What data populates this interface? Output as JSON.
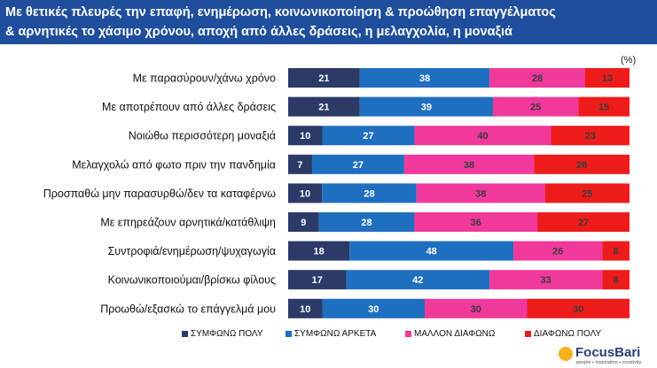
{
  "title_lines": [
    "Με θετικές πλευρές την επαφή, ενημέρωση, κοινωνικοποίηση & προώθηση επαγγέλματος",
    "& αρνητικές το χάσιμο χρόνου, αποχή από άλλες δράσεις, η μελαγχολία, η μοναξιά"
  ],
  "unit": "(%)",
  "colors": {
    "title_bg": "#1f4e9c",
    "series": [
      "#2b3a67",
      "#1f6fc0",
      "#f0399b",
      "#ee1b1b"
    ],
    "label_text": [
      "#ffffff",
      "#ffffff",
      "#3b3b3b",
      "#3b3b3b"
    ]
  },
  "logo": {
    "text": "FocusBari",
    "tagline": "people • inspiration • creativity"
  },
  "chart_data": {
    "type": "bar",
    "orientation": "horizontal",
    "stacked": "100%",
    "categories": [
      "Με παρασύρουν/χάνω χρόνο",
      "Με αποτρέπουν από άλλες δράσεις",
      "Νοιώθω περισσότερη μοναξιά",
      "Μελαγχολώ από φωτο πριν την πανδημία",
      "Προσπαθώ μην παρασυρθώ/δεν τα καταφέρνω",
      "Με επηρεάζουν αρνητικά/κατάθλιψη",
      "Συντροφιά/ενημέρωση/ψυχαγωγία",
      "Κοινωνικοποιούμαι/βρίσκω φίλους",
      "Προωθώ/εξασκώ το επάγγελμά μου"
    ],
    "series": [
      {
        "name": "ΣΥΜΦΩΝΩ ΠΟΛΥ",
        "values": [
          21,
          21,
          10,
          7,
          10,
          9,
          18,
          17,
          10
        ]
      },
      {
        "name": "ΣΥΜΦΩΝΩ ΑΡΚΕΤΑ",
        "values": [
          38,
          39,
          27,
          27,
          28,
          28,
          48,
          42,
          30
        ]
      },
      {
        "name": "ΜΑΛΛΟΝ ΔΙΑΦΩΝΩ",
        "values": [
          28,
          25,
          40,
          38,
          38,
          36,
          26,
          33,
          30
        ]
      },
      {
        "name": "ΔΙΑΦΩΝΩ ΠΟΛΥ",
        "values": [
          13,
          15,
          23,
          28,
          25,
          27,
          8,
          8,
          30
        ]
      }
    ],
    "legend_position": "bottom",
    "grid": false
  }
}
